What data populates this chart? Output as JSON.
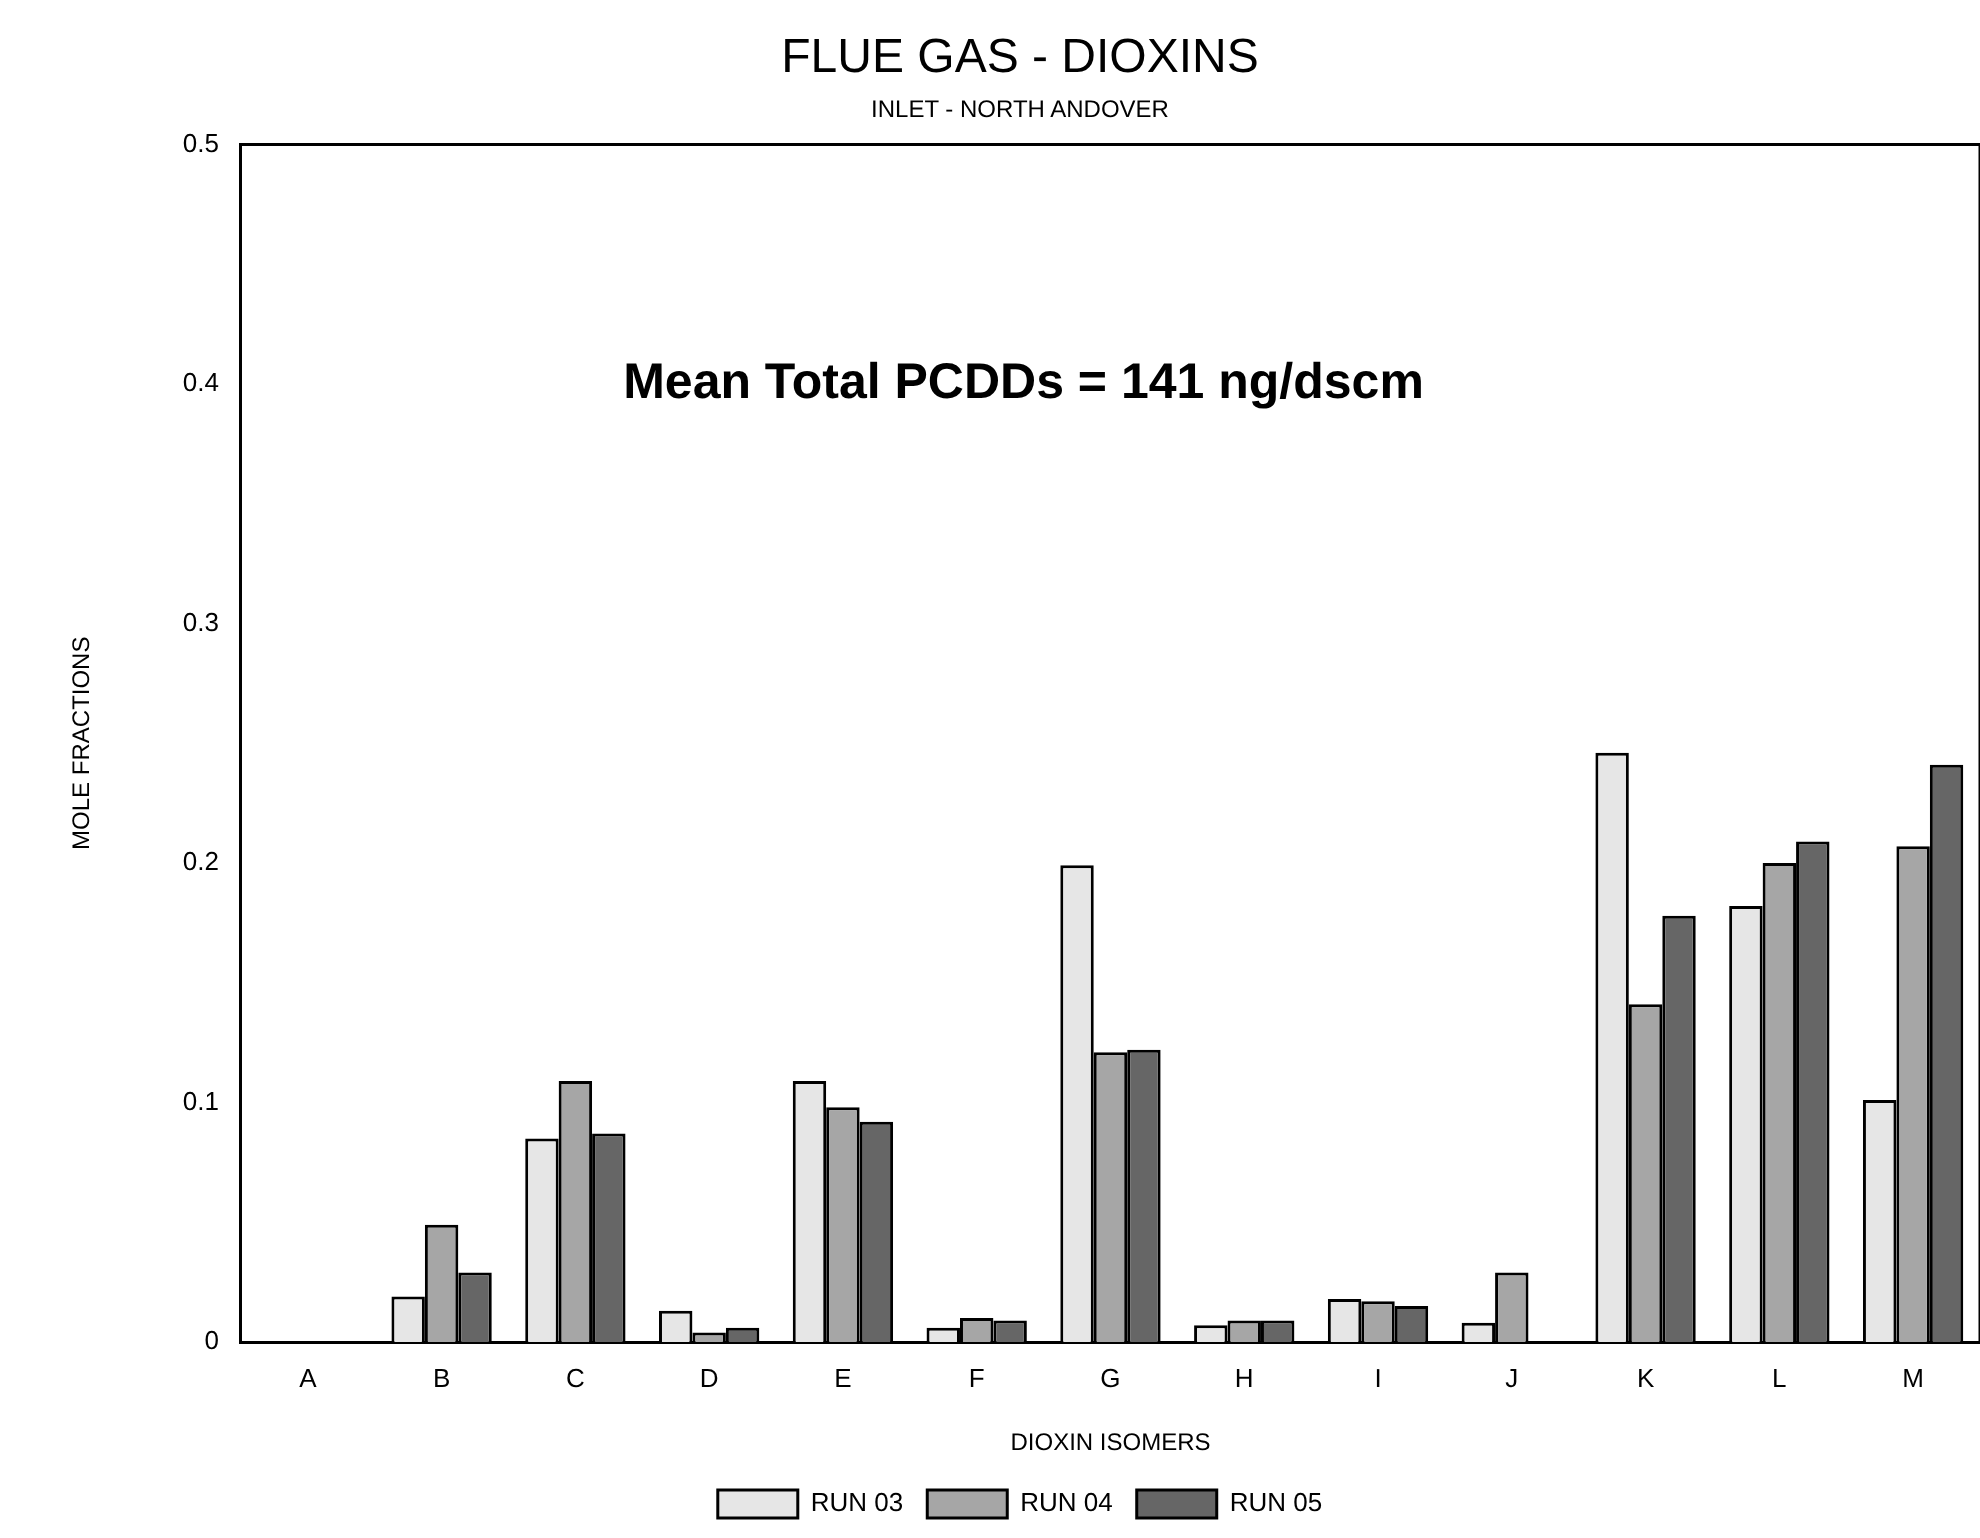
{
  "chart_data": {
    "type": "bar",
    "title": "FLUE GAS - DIOXINS",
    "subtitle": "INLET - NORTH ANDOVER",
    "xlabel": "DIOXIN ISOMERS",
    "ylabel": "MOLE FRACTIONS",
    "annotations": [
      "Mean Total PCDDs = 141 ng/dscm"
    ],
    "categories": [
      "A",
      "B",
      "C",
      "D",
      "E",
      "F",
      "G",
      "H",
      "I",
      "J",
      "K",
      "L",
      "M"
    ],
    "series": [
      {
        "name": "RUN 03",
        "color": "#e6e6e6",
        "values": [
          0,
          0.019,
          0.085,
          0.013,
          0.109,
          0.006,
          0.199,
          0.007,
          0.018,
          0.008,
          0.246,
          0.182,
          0.101
        ]
      },
      {
        "name": "RUN 04",
        "color": "#a6a6a6",
        "values": [
          0,
          0.049,
          0.109,
          0.004,
          0.098,
          0.01,
          0.121,
          0.009,
          0.017,
          0.029,
          0.141,
          0.2,
          0.207
        ]
      },
      {
        "name": "RUN 05",
        "color": "#666666",
        "values": [
          0,
          0.029,
          0.087,
          0.006,
          0.092,
          0.009,
          0.122,
          0.009,
          0.015,
          0,
          0.178,
          0.209,
          0.241
        ]
      }
    ],
    "ylim": [
      0,
      0.5
    ],
    "yticks": [
      0,
      0.1,
      0.2,
      0.3,
      0.4,
      0.5
    ],
    "grid": false,
    "legend": "bottom"
  }
}
